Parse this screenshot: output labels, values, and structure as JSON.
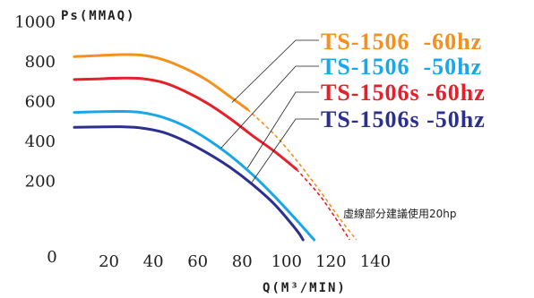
{
  "chart_data": {
    "type": "line",
    "ylabel": "Ps(MMAQ)",
    "xlabel": "Q(M³/MIN)",
    "xlim": [
      0,
      140
    ],
    "ylim": [
      0,
      1000
    ],
    "x_ticks": [
      "20",
      "40",
      "60",
      "80",
      "100",
      "120",
      "140"
    ],
    "x_origin_label": "0",
    "y_ticks": [
      "200",
      "400",
      "600",
      "800",
      "1000"
    ],
    "grid": false,
    "legend_position": "top-right",
    "annotation": "虛線部分建議使用20hp",
    "series": [
      {
        "name": "TS-1506  -60hz",
        "color": "#f5901e",
        "solid": {
          "x": [
            0,
            10,
            20,
            30,
            40,
            50,
            60,
            70,
            78
          ],
          "y": [
            920,
            925,
            930,
            928,
            905,
            860,
            800,
            720,
            655
          ]
        },
        "dashed": {
          "x": [
            78,
            90,
            100,
            110,
            120,
            127
          ],
          "y": [
            655,
            530,
            400,
            255,
            100,
            0
          ]
        }
      },
      {
        "name": "TS-1506  -50hz",
        "color": "#1aa7e8",
        "solid": {
          "x": [
            0,
            10,
            20,
            30,
            40,
            50,
            60,
            70,
            80,
            90,
            100,
            108
          ],
          "y": [
            640,
            643,
            645,
            640,
            615,
            570,
            505,
            425,
            330,
            220,
            100,
            0
          ]
        },
        "dashed": {
          "x": [],
          "y": []
        }
      },
      {
        "name": "TS-1506s -60hz",
        "color": "#e5202a",
        "solid": {
          "x": [
            0,
            10,
            20,
            30,
            40,
            50,
            60,
            70,
            80,
            90,
            100
          ],
          "y": [
            805,
            808,
            812,
            810,
            790,
            745,
            685,
            610,
            525,
            445,
            355
          ]
        },
        "dashed": {
          "x": [
            100,
            110,
            117,
            124
          ],
          "y": [
            355,
            230,
            120,
            0
          ]
        }
      },
      {
        "name": "TS-1506s -50hz",
        "color": "#2b2f8e",
        "solid": {
          "x": [
            0,
            10,
            20,
            30,
            40,
            50,
            60,
            70,
            80,
            90,
            100,
            103
          ],
          "y": [
            565,
            567,
            568,
            562,
            540,
            495,
            435,
            365,
            280,
            180,
            50,
            0
          ]
        },
        "dashed": {
          "x": [],
          "y": []
        }
      }
    ],
    "leader_lines": [
      {
        "series": "TS-1506  -60hz",
        "from": [
          71,
          690
        ]
      },
      {
        "series": "TS-1506  -50hz",
        "from": [
          66,
          460
        ]
      },
      {
        "series": "TS-1506s -60hz",
        "from": [
          78,
          360
        ]
      },
      {
        "series": "TS-1506s -50hz",
        "from": [
          80,
          290
        ]
      }
    ]
  }
}
